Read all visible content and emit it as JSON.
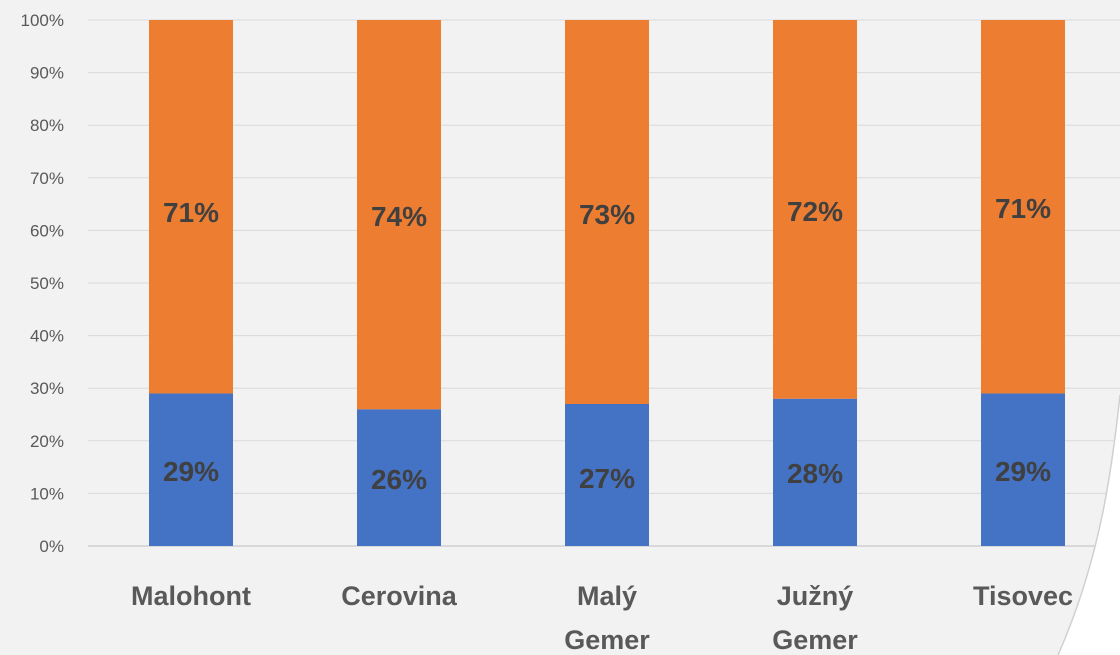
{
  "chart_data": {
    "type": "bar",
    "stacked": true,
    "percent_stacked": true,
    "categories": [
      "Malohont",
      "Cerovina",
      "Malý Gemer",
      "Južný Gemer",
      "Tisovec"
    ],
    "category_lines": [
      [
        "Malohont"
      ],
      [
        "Cerovina"
      ],
      [
        "Malý",
        "Gemer"
      ],
      [
        "Južný",
        "Gemer"
      ],
      [
        "Tisovec"
      ]
    ],
    "series": [
      {
        "values": [
          29,
          26,
          27,
          28,
          29
        ],
        "labels": [
          "29%",
          "26%",
          "27%",
          "28%",
          "29%"
        ],
        "color": "#4472c4"
      },
      {
        "values": [
          71,
          74,
          73,
          72,
          71
        ],
        "labels": [
          "71%",
          "74%",
          "73%",
          "72%",
          "71%"
        ],
        "color": "#ed7d31"
      }
    ],
    "ylim": [
      0,
      100
    ],
    "yticks": [
      "0%",
      "10%",
      "20%",
      "30%",
      "40%",
      "50%",
      "60%",
      "70%",
      "80%",
      "90%",
      "100%"
    ],
    "grid": true,
    "legend": "none"
  },
  "page_curl": {
    "color": "#ffffff"
  }
}
